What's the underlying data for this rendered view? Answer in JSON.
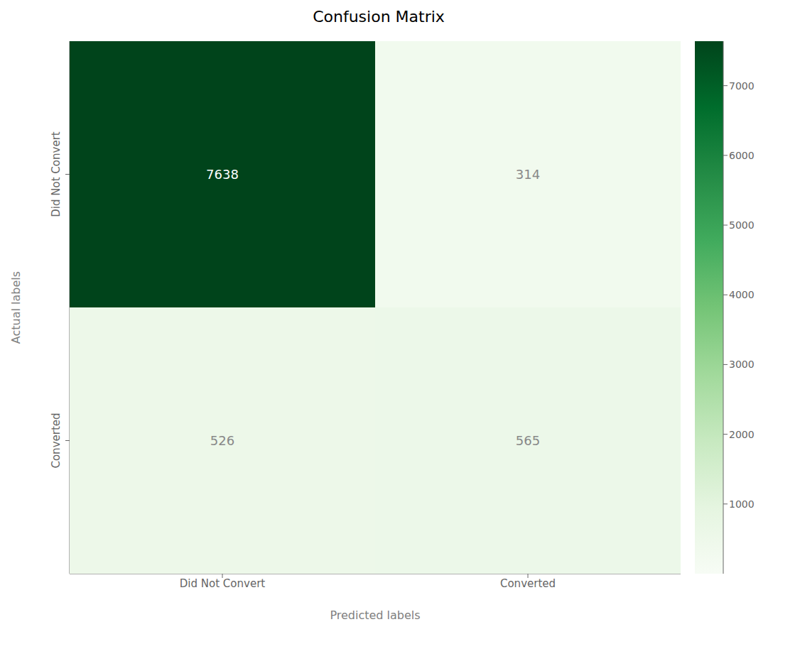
{
  "chart_data": {
    "type": "heatmap",
    "title": "Confusion Matrix",
    "categories": [
      "Did Not Convert",
      "Converted"
    ],
    "y_categories": [
      "Did Not Convert",
      "Converted"
    ],
    "xlabel": "Predicted labels",
    "ylabel": "Actual labels",
    "matrix": [
      [
        7638,
        314
      ],
      [
        526,
        565
      ]
    ],
    "color": "Greens",
    "colorbar_range": [
      0,
      7638
    ],
    "colorbar_ticks": [
      1000,
      2000,
      3000,
      4000,
      5000,
      6000,
      7000
    ],
    "data_labels": true
  }
}
